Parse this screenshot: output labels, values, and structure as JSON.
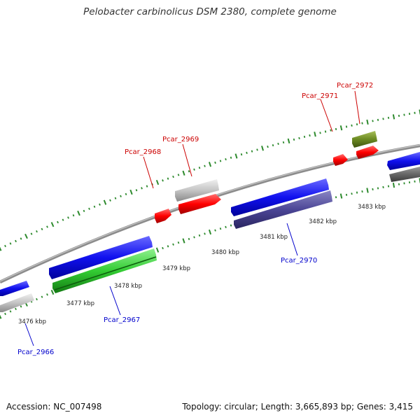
{
  "title": "Pelobacter carbinolicus DSM 2380, complete genome",
  "accession": "Accession: NC_007498",
  "topology": "Topology: circular; Length: 3,665,893 bp; Genes: 3,415",
  "ticks": [
    "3476 kbp",
    "3477 kbp",
    "3478 kbp",
    "3479 kbp",
    "3480 kbp",
    "3481 kbp",
    "3482 kbp",
    "3483 kbp"
  ],
  "gene_labels": {
    "g2966": "Pcar_2966",
    "g2967": "Pcar_2967",
    "g2968": "Pcar_2968",
    "g2969": "Pcar_2969",
    "g2970": "Pcar_2970",
    "g2971": "Pcar_2971",
    "g2972": "Pcar_2972"
  },
  "colors": {
    "forward_label": "#cc0000",
    "reverse_label": "#0000cc",
    "backbone": "#808080",
    "tick": "#2d8a2d"
  }
}
